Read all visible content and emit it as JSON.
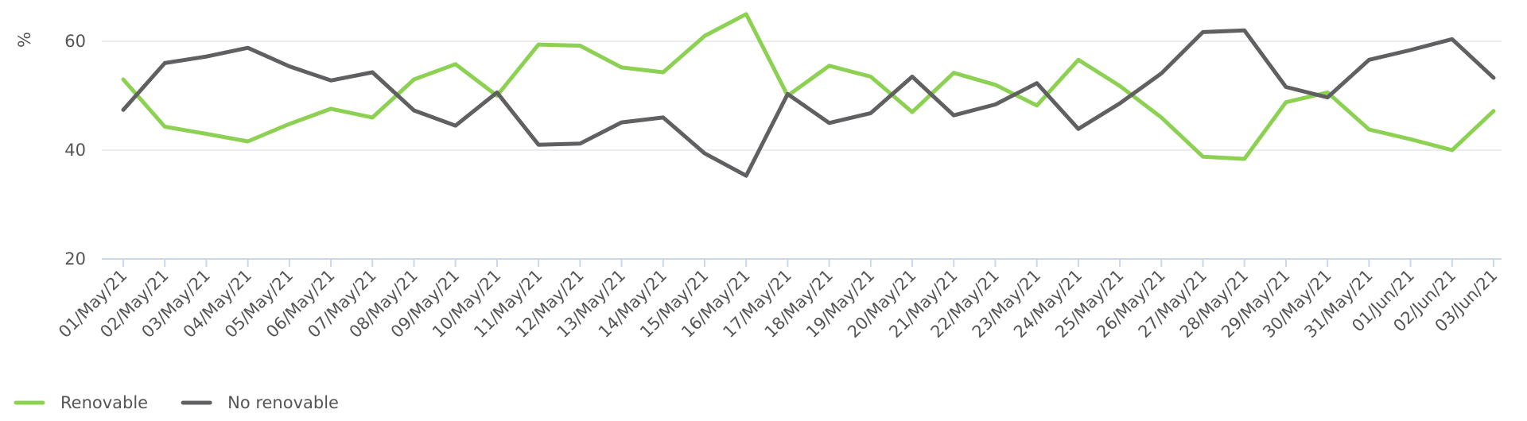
{
  "chart_data": {
    "type": "line",
    "title": "",
    "xlabel": "",
    "ylabel": "%",
    "ylim": [
      20,
      65
    ],
    "yticks": [
      20,
      40,
      60
    ],
    "grid": true,
    "legend_position": "bottom-left",
    "categories": [
      "01/May/21",
      "02/May/21",
      "03/May/21",
      "04/May/21",
      "05/May/21",
      "06/May/21",
      "07/May/21",
      "08/May/21",
      "09/May/21",
      "10/May/21",
      "11/May/21",
      "12/May/21",
      "13/May/21",
      "14/May/21",
      "15/May/21",
      "16/May/21",
      "17/May/21",
      "18/May/21",
      "19/May/21",
      "20/May/21",
      "21/May/21",
      "22/May/21",
      "23/May/21",
      "24/May/21",
      "25/May/21",
      "26/May/21",
      "27/May/21",
      "28/May/21",
      "29/May/21",
      "30/May/21",
      "31/May/21",
      "01/Jun/21",
      "02/Jun/21",
      "03/Jun/21"
    ],
    "series": [
      {
        "name": "Renovable",
        "color": "#8cd152",
        "values": [
          53.0,
          44.3,
          43.0,
          41.6,
          44.8,
          47.6,
          46.0,
          53.0,
          55.8,
          50.0,
          59.4,
          59.2,
          55.2,
          54.3,
          61.0,
          65.0,
          50.0,
          55.5,
          53.5,
          47.0,
          54.2,
          52.0,
          48.2,
          56.6,
          51.8,
          46.0,
          38.8,
          38.4,
          48.8,
          50.6,
          43.8,
          42.0,
          40.0,
          47.2
        ]
      },
      {
        "name": "No renovable",
        "color": "#606062",
        "values": [
          47.4,
          56.0,
          57.2,
          58.8,
          55.4,
          52.8,
          54.3,
          47.3,
          44.5,
          50.6,
          41.0,
          41.2,
          45.1,
          46.0,
          39.4,
          35.3,
          50.3,
          45.0,
          46.8,
          53.5,
          46.4,
          48.4,
          52.3,
          43.9,
          48.6,
          54.1,
          61.7,
          62.0,
          51.6,
          49.7,
          56.6,
          58.4,
          60.4,
          53.3
        ]
      }
    ]
  }
}
